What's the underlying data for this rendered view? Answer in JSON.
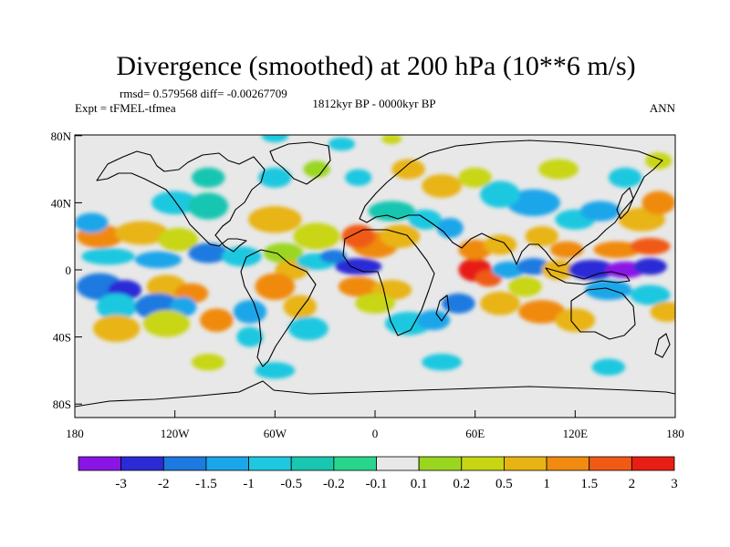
{
  "chart_data": {
    "type": "heatmap",
    "title": "Divergence (smoothed) at 200 hPa (10**6 m/s)",
    "stats_text": "rmsd= 0.579568 diff= -0.00267709",
    "left_label": "Expt = tFMEL-tfmea",
    "center_label": "1812kyr BP - 0000kyr BP",
    "right_label": "ANN",
    "x_ticks": [
      "180",
      "120W",
      "60W",
      "0",
      "60E",
      "120E",
      "180"
    ],
    "y_ticks": [
      "80N",
      "40N",
      "0",
      "40S",
      "80S"
    ],
    "colorbar_levels": [
      "-3",
      "-2",
      "-1.5",
      "-1",
      "-0.5",
      "-0.2",
      "-0.1",
      "0.1",
      "0.2",
      "0.5",
      "1",
      "1.5",
      "2",
      "3"
    ],
    "colorbar_colors": [
      "#8a14e6",
      "#2b2bd6",
      "#1c7ae0",
      "#1ca6ea",
      "#1ec8e0",
      "#19c6b0",
      "#27d68c",
      "#e8e8e8",
      "#9ad620",
      "#c8d612",
      "#e8b414",
      "#f08a10",
      "#f05a14",
      "#e81e14"
    ],
    "map_background": "#e8e8e8"
  }
}
